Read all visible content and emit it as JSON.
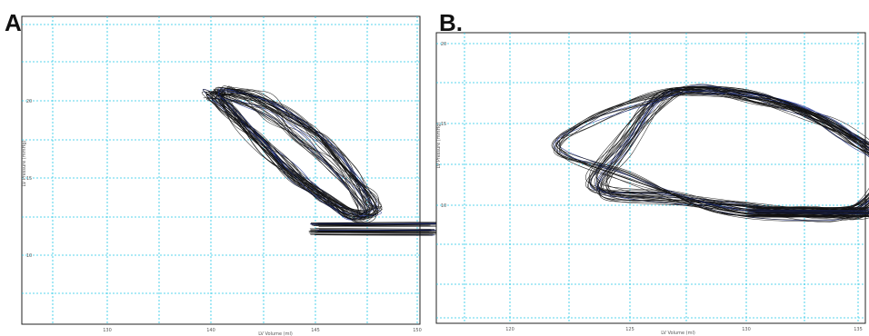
{
  "panels": [
    {
      "letter": "A."
    },
    {
      "letter": "B."
    }
  ],
  "chart_data": [
    {
      "type": "line",
      "title": "",
      "xlabel": "LV Volume (ml)",
      "ylabel": "LV Pressure (mmHg)",
      "x_ticks": [
        "130",
        "140",
        "145",
        "150"
      ],
      "y_ticks": [
        "20",
        "15",
        "10"
      ],
      "grid": true,
      "series": [
        {
          "loop": [
            [
              137,
              20.5
            ],
            [
              139,
              20.4
            ],
            [
              141,
              19.6
            ],
            [
              143,
              18.2
            ],
            [
              145,
              16.3
            ],
            [
              146.5,
              14.3
            ],
            [
              147,
              12.8
            ],
            [
              146,
              12.5
            ],
            [
              144,
              13.8
            ],
            [
              142,
              15.4
            ],
            [
              140,
              17.4
            ],
            [
              138,
              19.3
            ]
          ]
        },
        {
          "loop": [
            [
              136.5,
              20.4
            ],
            [
              138.5,
              20.0
            ],
            [
              140.5,
              19.0
            ],
            [
              142.5,
              17.6
            ],
            [
              144.5,
              15.8
            ],
            [
              146,
              13.9
            ],
            [
              146.5,
              12.7
            ],
            [
              145.5,
              12.7
            ],
            [
              143.5,
              14.2
            ],
            [
              141.5,
              15.9
            ],
            [
              139.5,
              17.9
            ],
            [
              137.5,
              19.6
            ]
          ]
        },
        {
          "loop": [
            [
              137.5,
              20.6
            ],
            [
              140,
              20.2
            ],
            [
              142,
              18.9
            ],
            [
              144,
              17.3
            ],
            [
              145.8,
              15.2
            ],
            [
              147,
              13.6
            ],
            [
              147.3,
              12.9
            ],
            [
              146.2,
              12.6
            ],
            [
              144.2,
              13.5
            ],
            [
              142.2,
              15.0
            ],
            [
              140.2,
              16.8
            ],
            [
              138.2,
              18.9
            ]
          ]
        }
      ],
      "baseline": {
        "x": [
          143,
          151.5
        ],
        "y": [
          11.3,
          12.1
        ]
      }
    },
    {
      "type": "line",
      "title": "",
      "xlabel": "LV Volume (ml)",
      "ylabel": "LV Pressure (mmHg)",
      "x_ticks": [
        "120",
        "125",
        "130",
        "135"
      ],
      "y_ticks": [
        "20",
        "15",
        "10"
      ],
      "grid": true,
      "series": [
        {
          "loop": [
            [
              124,
              15.8
            ],
            [
              125,
              18.5
            ],
            [
              126.5,
              21.5
            ],
            [
              128,
              22.1
            ],
            [
              130,
              21.8
            ],
            [
              132,
              21.0
            ],
            [
              134,
              19.5
            ],
            [
              136,
              17.5
            ],
            [
              135,
              15.0
            ],
            [
              133,
              14.5
            ],
            [
              130,
              14.7
            ],
            [
              127,
              15.3
            ]
          ]
        },
        {
          "loop": [
            [
              123.5,
              16.3
            ],
            [
              124.8,
              19.0
            ],
            [
              126.3,
              21.7
            ],
            [
              128.2,
              22.0
            ],
            [
              130.5,
              21.5
            ],
            [
              132.5,
              20.6
            ],
            [
              134.5,
              19.0
            ],
            [
              135.8,
              17.3
            ],
            [
              134.6,
              14.8
            ],
            [
              132.5,
              14.6
            ],
            [
              129.5,
              14.9
            ],
            [
              126.5,
              15.6
            ]
          ]
        },
        {
          "loop": [
            [
              122,
              18.5
            ],
            [
              123.5,
              20.2
            ],
            [
              126,
              21.6
            ],
            [
              128,
              22.0
            ],
            [
              131,
              21.4
            ],
            [
              133.5,
              20.0
            ],
            [
              135.5,
              18.2
            ],
            [
              136.2,
              16.6
            ],
            [
              135.2,
              14.6
            ],
            [
              133,
              14.3
            ],
            [
              129,
              14.8
            ],
            [
              125,
              16.8
            ]
          ]
        }
      ],
      "baseline": {
        "x": [
          130,
          135.5
        ],
        "y": [
          14.3,
          14.9
        ]
      }
    }
  ]
}
